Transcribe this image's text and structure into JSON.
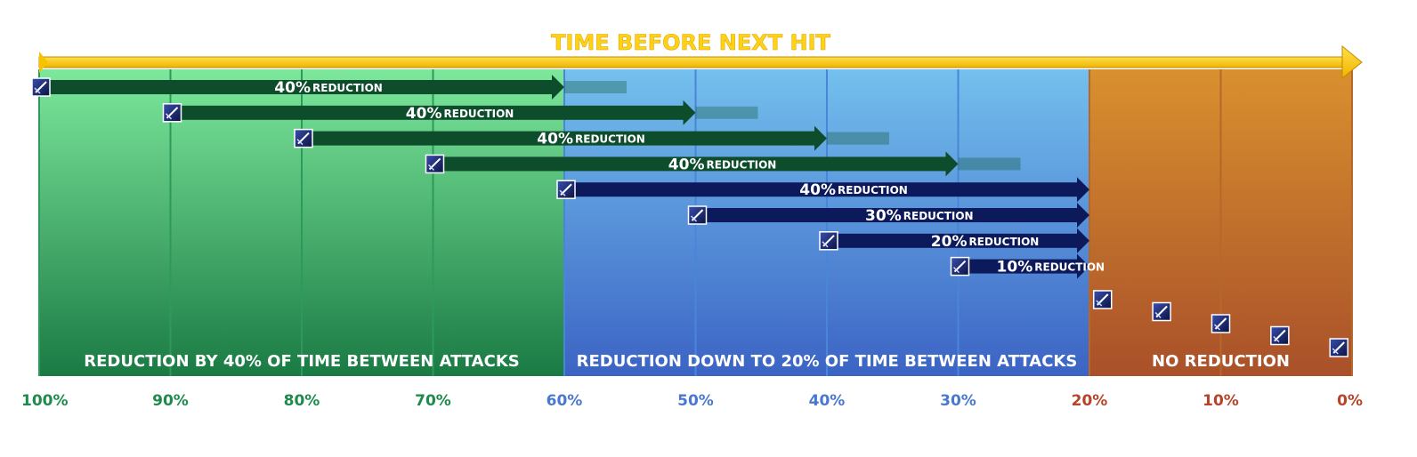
{
  "title": "TIME BEFORE NEXT HIT",
  "colors": {
    "green_light": "#7de89c",
    "green_dark": "#1a7a44",
    "blue_light": "#74c0ee",
    "blue_dark": "#3b63c4",
    "orange_light": "#d9902e",
    "orange_dark": "#a9502a",
    "title_gold": "#ffd21a",
    "arrow_green": "#0e4d2c",
    "arrow_navy": "#0c1a5c",
    "tick_green": "#1e8a4c",
    "tick_blue": "#4a78d0",
    "tick_red": "#b5442a"
  },
  "zones": [
    {
      "label": "REDUCTION BY 40% OF TIME BETWEEN ATTACKS",
      "from": 100,
      "to": 60,
      "color": "green"
    },
    {
      "label": "REDUCTION DOWN TO 20% OF TIME BETWEEN ATTACKS",
      "from": 60,
      "to": 20,
      "color": "blue"
    },
    {
      "label": "NO REDUCTION",
      "from": 20,
      "to": 0,
      "color": "orange"
    }
  ],
  "ticks": [
    {
      "label": "100%",
      "value": 100,
      "color": "green"
    },
    {
      "label": "90%",
      "value": 90,
      "color": "green"
    },
    {
      "label": "80%",
      "value": 80,
      "color": "green"
    },
    {
      "label": "70%",
      "value": 70,
      "color": "green"
    },
    {
      "label": "60%",
      "value": 60,
      "color": "blue"
    },
    {
      "label": "50%",
      "value": 50,
      "color": "blue"
    },
    {
      "label": "40%",
      "value": 40,
      "color": "blue"
    },
    {
      "label": "30%",
      "value": 30,
      "color": "blue"
    },
    {
      "label": "20%",
      "value": 20,
      "color": "red"
    },
    {
      "label": "10%",
      "value": 10,
      "color": "red"
    },
    {
      "label": "0%",
      "value": 0,
      "color": "red"
    }
  ],
  "reductions": [
    {
      "start": 100,
      "end": 60,
      "pct": "40%",
      "suffix": "REDUCTION",
      "color": "green"
    },
    {
      "start": 90,
      "end": 50,
      "pct": "40%",
      "suffix": "REDUCTION",
      "color": "green"
    },
    {
      "start": 80,
      "end": 40,
      "pct": "40%",
      "suffix": "REDUCTION",
      "color": "green"
    },
    {
      "start": 70,
      "end": 30,
      "pct": "40%",
      "suffix": "REDUCTION",
      "color": "green"
    },
    {
      "start": 60,
      "end": 20,
      "pct": "40%",
      "suffix": "REDUCTION",
      "color": "navy"
    },
    {
      "start": 50,
      "end": 20,
      "pct": "30%",
      "suffix": "REDUCTION",
      "color": "navy"
    },
    {
      "start": 40,
      "end": 20,
      "pct": "20%",
      "suffix": "REDUCTION",
      "color": "navy"
    },
    {
      "start": 30,
      "end": 20,
      "pct": "10%",
      "suffix": "REDUCTION",
      "color": "navy"
    }
  ],
  "hits_no_reduction": [
    19,
    14.5,
    10,
    5.5,
    1
  ],
  "icon": "sword-icon"
}
